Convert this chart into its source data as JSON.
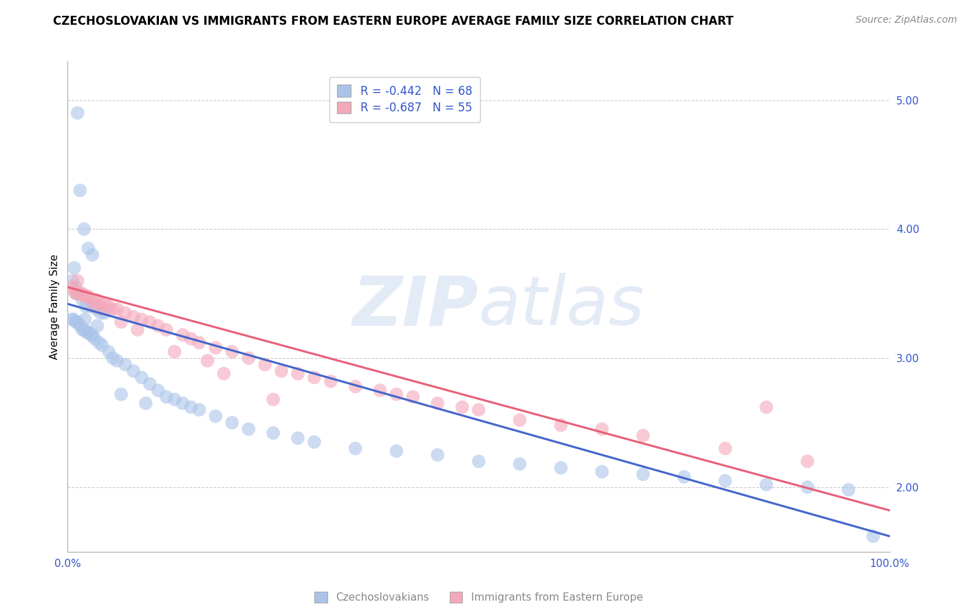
{
  "title": "CZECHOSLOVAKIAN VS IMMIGRANTS FROM EASTERN EUROPE AVERAGE FAMILY SIZE CORRELATION CHART",
  "source": "Source: ZipAtlas.com",
  "ylabel": "Average Family Size",
  "xlim": [
    0.0,
    100.0
  ],
  "ylim": [
    1.5,
    5.3
  ],
  "yticks": [
    2.0,
    3.0,
    4.0,
    5.0
  ],
  "xticks": [
    0.0,
    100.0
  ],
  "xticklabels": [
    "0.0%",
    "100.0%"
  ],
  "yticklabels": [
    "2.00",
    "3.00",
    "4.00",
    "5.00"
  ],
  "blue_R": -0.442,
  "blue_N": 68,
  "pink_R": -0.687,
  "pink_N": 55,
  "blue_label": "Czechoslovakians",
  "pink_label": "Immigrants from Eastern Europe",
  "blue_color": "#aac4e8",
  "pink_color": "#f4a8ba",
  "blue_line_color": "#4466cc",
  "pink_line_color": "#e8607a",
  "legend_text_color": "#3355cc",
  "title_fontsize": 12,
  "source_fontsize": 10,
  "axis_label_fontsize": 11,
  "tick_fontsize": 11,
  "legend_fontsize": 12,
  "blue_line_y_start": 3.42,
  "blue_line_y_end": 1.62,
  "pink_line_y_start": 3.55,
  "pink_line_y_end": 1.82,
  "grid_color": "#cccccc",
  "background_color": "#ffffff",
  "blue_scatter_x": [
    1.2,
    1.5,
    2.0,
    2.5,
    3.0,
    0.8,
    1.0,
    1.3,
    1.8,
    2.2,
    2.8,
    3.2,
    3.5,
    4.0,
    4.5,
    0.5,
    0.7,
    1.0,
    1.2,
    1.5,
    1.8,
    2.0,
    2.3,
    2.5,
    2.8,
    3.0,
    3.3,
    3.8,
    4.2,
    5.0,
    5.5,
    6.0,
    7.0,
    8.0,
    9.0,
    10.0,
    11.0,
    12.0,
    13.0,
    14.0,
    15.0,
    16.0,
    18.0,
    20.0,
    22.0,
    25.0,
    28.0,
    30.0,
    35.0,
    40.0,
    45.0,
    50.0,
    55.0,
    60.0,
    65.0,
    70.0,
    75.0,
    80.0,
    85.0,
    90.0,
    95.0,
    98.0,
    0.6,
    1.1,
    2.1,
    3.6,
    6.5,
    9.5
  ],
  "blue_scatter_y": [
    4.9,
    4.3,
    4.0,
    3.85,
    3.8,
    3.7,
    3.55,
    3.5,
    3.45,
    3.4,
    3.4,
    3.4,
    3.38,
    3.35,
    3.35,
    3.3,
    3.3,
    3.28,
    3.28,
    3.25,
    3.22,
    3.22,
    3.2,
    3.2,
    3.18,
    3.18,
    3.15,
    3.12,
    3.1,
    3.05,
    3.0,
    2.98,
    2.95,
    2.9,
    2.85,
    2.8,
    2.75,
    2.7,
    2.68,
    2.65,
    2.62,
    2.6,
    2.55,
    2.5,
    2.45,
    2.42,
    2.38,
    2.35,
    2.3,
    2.28,
    2.25,
    2.2,
    2.18,
    2.15,
    2.12,
    2.1,
    2.08,
    2.05,
    2.02,
    2.0,
    1.98,
    1.62,
    3.6,
    3.5,
    3.3,
    3.25,
    2.72,
    2.65
  ],
  "pink_scatter_x": [
    0.5,
    0.8,
    1.0,
    1.5,
    2.0,
    2.5,
    3.0,
    3.5,
    4.0,
    4.5,
    5.0,
    5.5,
    6.0,
    7.0,
    8.0,
    9.0,
    10.0,
    11.0,
    12.0,
    14.0,
    15.0,
    16.0,
    18.0,
    20.0,
    22.0,
    24.0,
    26.0,
    28.0,
    30.0,
    32.0,
    35.0,
    38.0,
    40.0,
    42.0,
    45.0,
    48.0,
    50.0,
    55.0,
    60.0,
    65.0,
    70.0,
    80.0,
    90.0,
    1.2,
    1.8,
    2.2,
    3.2,
    4.2,
    6.5,
    8.5,
    13.0,
    17.0,
    19.0,
    25.0,
    85.0
  ],
  "pink_scatter_y": [
    3.55,
    3.52,
    3.5,
    3.5,
    3.48,
    3.48,
    3.45,
    3.45,
    3.42,
    3.42,
    3.4,
    3.38,
    3.38,
    3.35,
    3.32,
    3.3,
    3.28,
    3.25,
    3.22,
    3.18,
    3.15,
    3.12,
    3.08,
    3.05,
    3.0,
    2.95,
    2.9,
    2.88,
    2.85,
    2.82,
    2.78,
    2.75,
    2.72,
    2.7,
    2.65,
    2.62,
    2.6,
    2.52,
    2.48,
    2.45,
    2.4,
    2.3,
    2.2,
    3.6,
    3.5,
    3.48,
    3.42,
    3.38,
    3.28,
    3.22,
    3.05,
    2.98,
    2.88,
    2.68,
    2.62
  ]
}
